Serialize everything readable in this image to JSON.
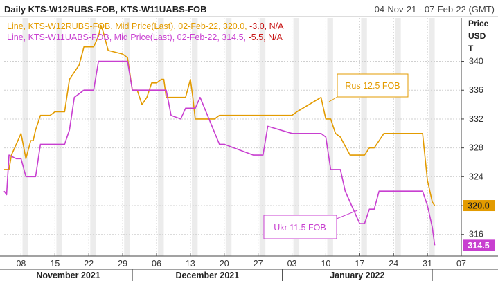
{
  "header": {
    "title": "Daily KTS-W12RUBS-FOB, KTS-W11UABS-FOB",
    "date_range": "04-Nov-21 - 07-Feb-22 (GMT)"
  },
  "legend": [
    {
      "prefix": "Line, KTS-W12RUBS-FOB, Mid Price(Last), 02-Feb-22, 320.0,",
      "change": "-3.0, N/A",
      "color": "#e39b00"
    },
    {
      "prefix": "Line, KTS-W11UABS-FOB, Mid Price(Last), 02-Feb-22, 314.5,",
      "change": "-5.5, N/A",
      "color": "#c83fd0"
    }
  ],
  "axis": {
    "y_label_lines": [
      "Price",
      "USD",
      "T"
    ]
  },
  "callouts": {
    "rus": "Rus 12.5 FOB",
    "ukr": "Ukr 11.5 FOB"
  },
  "last_values": {
    "rus": "320.0",
    "ukr": "314.5"
  },
  "colors": {
    "rus": "#e39b00",
    "ukr": "#c83fd0",
    "shade": "#ececec",
    "grid": "#cfcfcf"
  },
  "chart_data": {
    "type": "line",
    "title": "Daily KTS-W12RUBS-FOB, KTS-W11UABS-FOB",
    "xlabel": "",
    "ylabel": "Price USD T",
    "x_unit": "days since 04-Nov-21",
    "xlim": [
      0.5,
      95
    ],
    "ylim": [
      313,
      346
    ],
    "y_ticks": [
      316,
      320,
      324,
      328,
      332,
      336,
      340
    ],
    "grid": true,
    "x_ticks": [
      {
        "x": 4,
        "label": "08"
      },
      {
        "x": 11,
        "label": "15"
      },
      {
        "x": 18,
        "label": "22"
      },
      {
        "x": 25,
        "label": "29"
      },
      {
        "x": 32,
        "label": "06"
      },
      {
        "x": 39,
        "label": "13"
      },
      {
        "x": 46,
        "label": "20"
      },
      {
        "x": 53,
        "label": "27"
      },
      {
        "x": 60,
        "label": "03"
      },
      {
        "x": 67,
        "label": "10"
      },
      {
        "x": 74,
        "label": "17"
      },
      {
        "x": 81,
        "label": "24"
      },
      {
        "x": 88,
        "label": "31"
      },
      {
        "x": 95,
        "label": "07"
      }
    ],
    "months": [
      {
        "label": "November 2021",
        "start": 0.5,
        "end": 27
      },
      {
        "label": "December 2021",
        "start": 27,
        "end": 58
      },
      {
        "label": "January 2022",
        "start": 58,
        "end": 89
      }
    ],
    "weekend_shading": [
      [
        4.3,
        5.5
      ],
      [
        11.3,
        12.5
      ],
      [
        18.3,
        19.5
      ],
      [
        25.3,
        26.5
      ],
      [
        32.3,
        33.5
      ],
      [
        39.3,
        40.5
      ],
      [
        46.3,
        47.5
      ],
      [
        53.3,
        54.5
      ],
      [
        60.3,
        61.5
      ],
      [
        67.3,
        68.5
      ],
      [
        74.3,
        75.5
      ],
      [
        81.3,
        82.5
      ],
      [
        88.3,
        89.5
      ]
    ],
    "series": [
      {
        "name": "Rus 12.5 FOB (KTS-W12RUBS-FOB)",
        "color": "#e39b00",
        "x": [
          0.5,
          1.5,
          2,
          4,
          5,
          6,
          6.5,
          7,
          8,
          10,
          11,
          13,
          14,
          15,
          16,
          17,
          19,
          20,
          20.5,
          21,
          22,
          25,
          26,
          27,
          28,
          29,
          30,
          31,
          32,
          33,
          33.5,
          34,
          38,
          39,
          39.5,
          40,
          44,
          45,
          60,
          61,
          66,
          67,
          68,
          69,
          70,
          72,
          75,
          76,
          77,
          78,
          79,
          80,
          81,
          86,
          87,
          88,
          89,
          89.5
        ],
        "values": [
          325,
          325,
          327,
          330,
          326.5,
          329,
          329,
          330.5,
          332.5,
          332.5,
          333,
          333,
          337.5,
          338.5,
          339.5,
          342,
          342,
          343.5,
          345,
          344,
          341.5,
          341,
          340.5,
          336,
          336,
          334,
          335,
          337,
          337,
          337.5,
          337.5,
          335,
          335,
          337.5,
          335,
          332,
          332,
          332.5,
          332.5,
          333,
          335,
          332,
          332,
          330,
          329.5,
          327,
          327,
          328,
          328,
          329,
          330,
          330,
          330,
          330,
          330,
          323.5,
          320.5,
          320
        ]
      },
      {
        "name": "Ukr 11.5 FOB (KTS-W11UABS-FOB)",
        "color": "#c83fd0",
        "x": [
          0.5,
          1,
          1.5,
          3,
          4,
          5,
          6,
          7,
          8,
          13,
          14,
          15,
          17,
          19,
          20,
          21,
          26,
          27,
          28,
          32,
          33,
          34,
          35,
          37,
          38,
          40,
          41,
          45,
          46,
          52,
          53,
          54,
          55,
          60,
          61,
          66,
          67,
          68,
          69,
          70,
          71,
          74,
          75,
          76,
          77,
          78,
          84,
          85,
          86,
          87,
          88,
          89,
          89.5
        ],
        "values": [
          322,
          321.5,
          327,
          326.5,
          326.5,
          324,
          324,
          324,
          328.5,
          328.5,
          330.5,
          335,
          336,
          336,
          340,
          340,
          340,
          336,
          336,
          336,
          336,
          336,
          332.5,
          332,
          333.5,
          333.5,
          335,
          328.5,
          328.5,
          327,
          327,
          327,
          331,
          330,
          330,
          330,
          329.5,
          325,
          325,
          325,
          322,
          317.5,
          317.5,
          319.5,
          319.5,
          322,
          322,
          322,
          322,
          322,
          320,
          317,
          314.5
        ]
      }
    ]
  }
}
